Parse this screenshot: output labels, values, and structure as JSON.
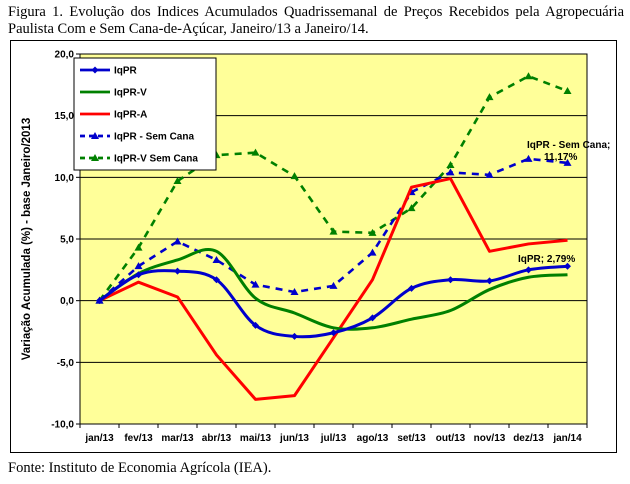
{
  "caption": "Figura 1. Evolução dos Indices Acumulados Quadrissemanal de Preços Recebidos pela Agropecuária Paulista Com e Sem Cana-de-Açúcar, Janeiro/13 a Janeiro/14.",
  "source": "Fonte: Instituto de Economia Agrícola (IEA).",
  "chart_data": {
    "type": "line",
    "title": "",
    "xlabel": "",
    "ylabel": "Variação Acumulada (%) - base Janeiro/2013",
    "ylim": [
      -10,
      20
    ],
    "yticks": [
      "20,0",
      "15,0",
      "10,0",
      "5,0",
      "0,0",
      "-5,0",
      "-10,0"
    ],
    "categories": [
      "jan/13",
      "fev/13",
      "mar/13",
      "abr/13",
      "mai/13",
      "jun/13",
      "jul/13",
      "ago/13",
      "set/13",
      "out/13",
      "nov/13",
      "dez/13",
      "jan/14"
    ],
    "grid": true,
    "plot_background": "#ffff99",
    "legend_position": "top-left",
    "series": [
      {
        "name": "IqPR",
        "color": "#0000cc",
        "dashed": false,
        "smooth": true,
        "marker": "diamond",
        "values": [
          0,
          2.1,
          2.4,
          1.7,
          -2.0,
          -2.9,
          -2.6,
          -1.4,
          1.0,
          1.7,
          1.6,
          2.5,
          2.79
        ]
      },
      {
        "name": "IqPR-V",
        "color": "#008000",
        "dashed": false,
        "smooth": true,
        "marker": "none",
        "values": [
          0,
          2.2,
          3.3,
          4.0,
          0.2,
          -1.0,
          -2.2,
          -2.2,
          -1.5,
          -0.8,
          0.9,
          1.9,
          2.1
        ]
      },
      {
        "name": "IqPR-A",
        "color": "#ff0000",
        "dashed": false,
        "smooth": false,
        "marker": "none",
        "values": [
          0,
          1.5,
          0.3,
          -4.4,
          -8.0,
          -7.7,
          -3.0,
          1.7,
          9.2,
          9.9,
          4.0,
          4.6,
          4.9
        ]
      },
      {
        "name": "IqPR - Sem Cana",
        "color": "#0000cc",
        "dashed": true,
        "smooth": false,
        "marker": "triangle",
        "values": [
          0,
          2.8,
          4.8,
          3.3,
          1.3,
          0.7,
          1.2,
          3.9,
          8.8,
          10.4,
          10.2,
          11.5,
          11.17
        ]
      },
      {
        "name": "IqPR-V Sem Cana",
        "color": "#008000",
        "dashed": true,
        "smooth": false,
        "marker": "triangle",
        "values": [
          0,
          4.3,
          9.7,
          11.8,
          12.0,
          10.1,
          5.6,
          5.5,
          7.5,
          11.0,
          16.5,
          18.2,
          17.0
        ]
      }
    ],
    "annotations": [
      {
        "text_line1": "IqPR - Sem Cana;",
        "text_line2": "11,17%",
        "series": "IqPR - Sem Cana"
      },
      {
        "text": "IqPR; 2,79%",
        "series": "IqPR"
      }
    ]
  }
}
